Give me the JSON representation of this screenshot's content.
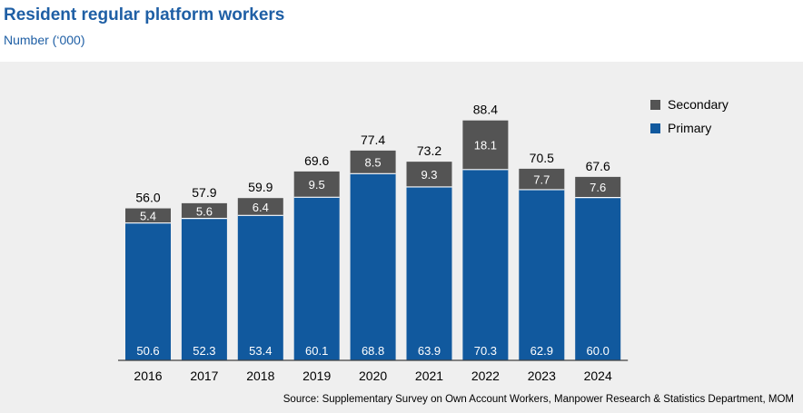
{
  "title": "Resident regular platform workers",
  "subtitle": "Number (‘000)",
  "source": "Source: Supplementary Survey on Own Account Workers, Manpower Research & Statistics Department, MOM",
  "chart_data": {
    "type": "bar",
    "stacked": true,
    "title": "Resident regular platform workers",
    "subtitle": "Number (‘000)",
    "categories": [
      "2016",
      "2017",
      "2018",
      "2019",
      "2020",
      "2021",
      "2022",
      "2023",
      "2024"
    ],
    "series": [
      {
        "name": "Primary",
        "color": "#11599e",
        "values": [
          50.6,
          52.3,
          53.4,
          60.1,
          68.8,
          63.9,
          70.3,
          62.9,
          60.0
        ]
      },
      {
        "name": "Secondary",
        "color": "#545454",
        "values": [
          5.4,
          5.6,
          6.4,
          9.5,
          8.5,
          9.3,
          18.1,
          7.7,
          7.6
        ]
      }
    ],
    "totals": [
      56.0,
      57.9,
      59.9,
      69.6,
      77.4,
      73.2,
      88.4,
      70.5,
      67.6
    ],
    "legend": [
      {
        "name": "Secondary",
        "color": "#545454"
      },
      {
        "name": "Primary",
        "color": "#11599e"
      }
    ],
    "legend_position": "top-right",
    "grid": false
  }
}
